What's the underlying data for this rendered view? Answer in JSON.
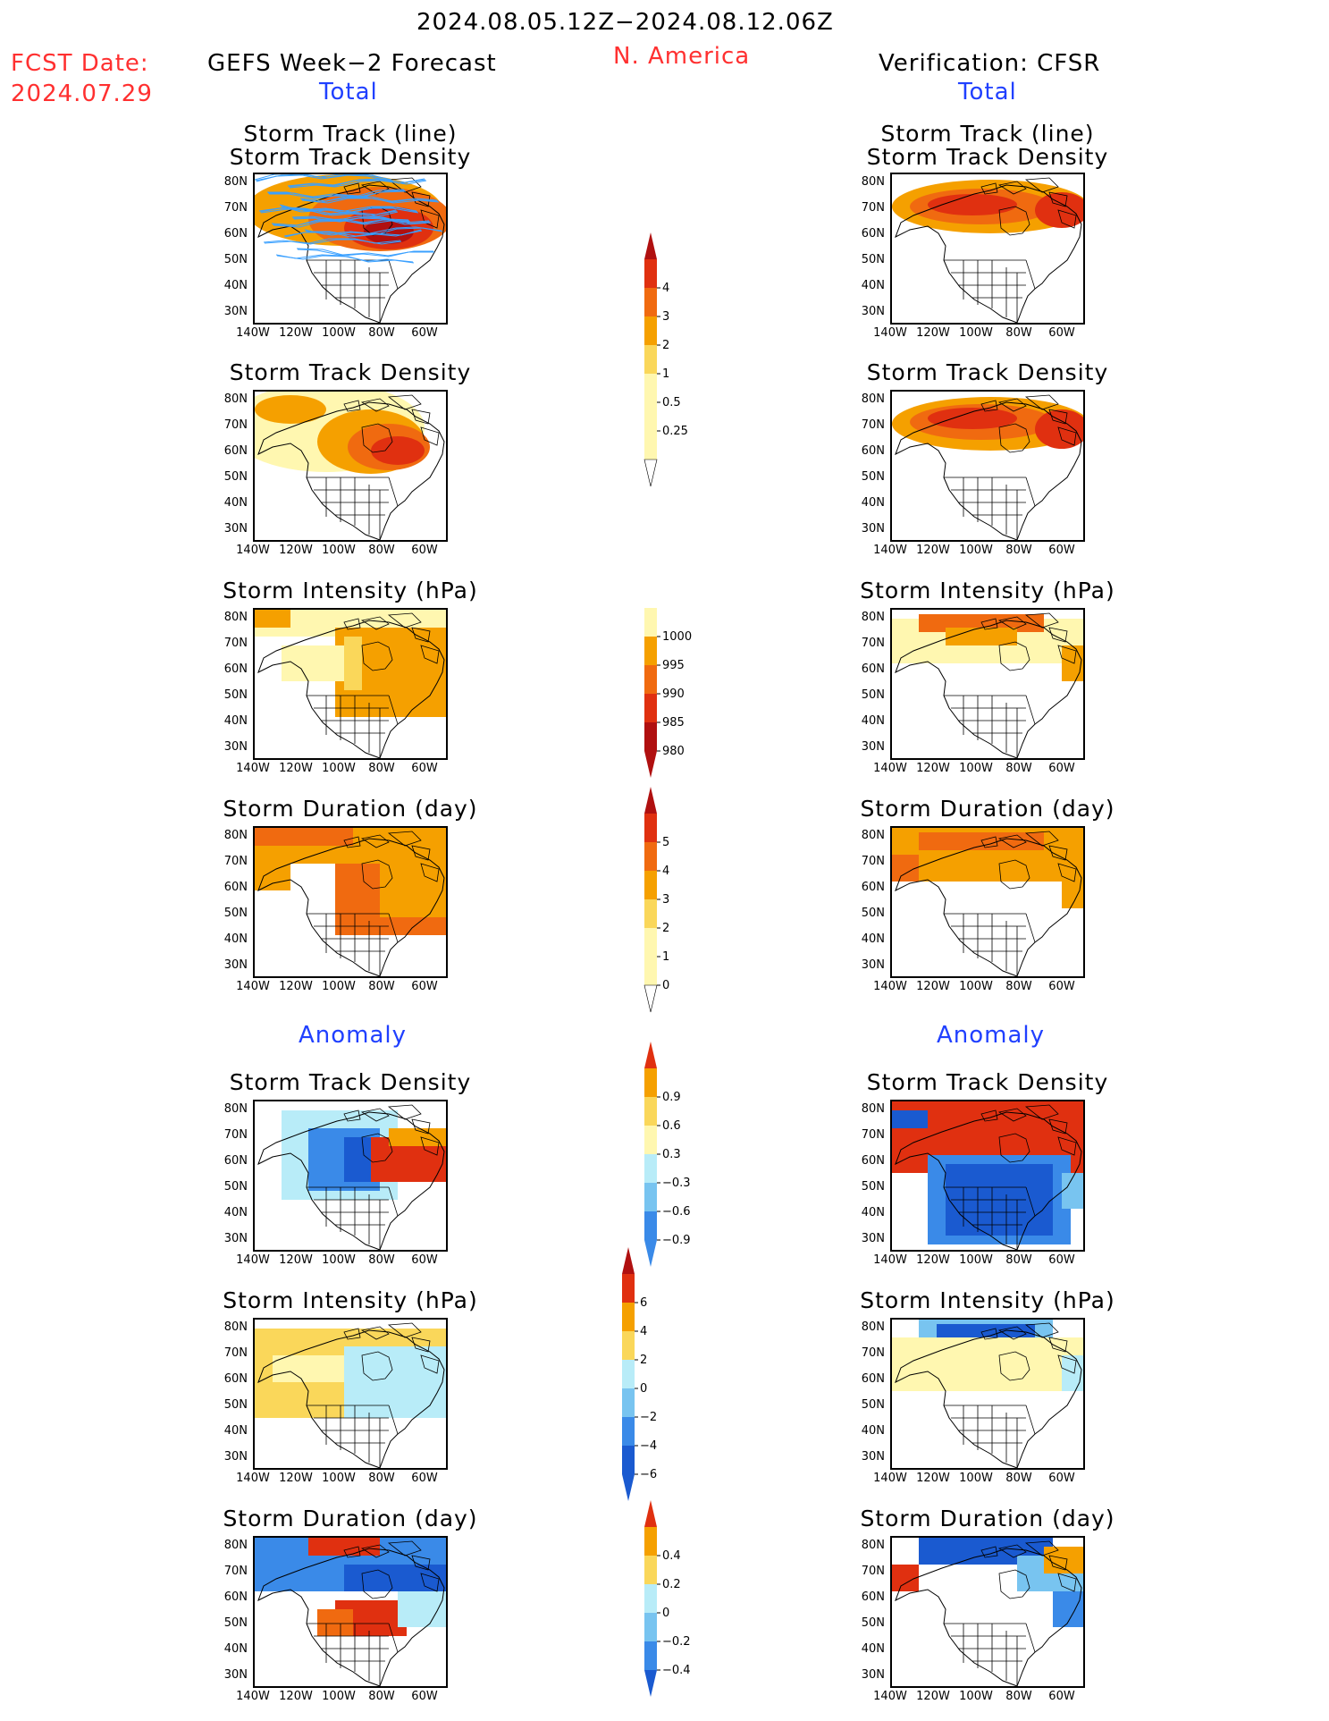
{
  "header": {
    "date_range": "2024.08.05.12Z−2024.08.12.06Z",
    "region": "N. America",
    "fcst_label": "FCST Date:",
    "fcst_date": "2024.07.29",
    "left_title": "GEFS Week−2 Forecast",
    "right_title": "Verification: CFSR"
  },
  "sections": {
    "total": "Total",
    "anomaly": "Anomaly"
  },
  "panels": {
    "track_line": "Storm Track (line)",
    "track_density_shading": "Storm Track Density (shading)",
    "track_density": "Storm Track Density",
    "intensity": "Storm Intensity (hPa)",
    "duration": "Storm Duration (day)"
  },
  "axes": {
    "lat": [
      "80N",
      "70N",
      "60N",
      "50N",
      "40N",
      "30N"
    ],
    "lon": [
      "140W",
      "120W",
      "100W",
      "80W",
      "60W"
    ]
  },
  "colorbars": {
    "density_total": [
      "4",
      "3",
      "2",
      "1",
      "0.5",
      "0.25"
    ],
    "intensity_total": [
      "1000",
      "995",
      "990",
      "985",
      "980"
    ],
    "duration_total": [
      "5",
      "4",
      "3",
      "2",
      "1",
      "0"
    ],
    "density_anom": [
      "0.9",
      "0.6",
      "0.3",
      "−0.3",
      "−0.6",
      "−0.9"
    ],
    "intensity_anom": [
      "6",
      "4",
      "2",
      "0",
      "−2",
      "−4",
      "−6"
    ],
    "duration_anom": [
      "0.4",
      "0.2",
      "0",
      "−0.2",
      "−0.4"
    ]
  },
  "colors": {
    "lightyellow": "#fff7b0",
    "yellow": "#fad75a",
    "orange": "#f5a000",
    "darkorange": "#f06a10",
    "red": "#e03010",
    "darkred": "#b01010",
    "lightblue": "#b8ecf8",
    "skyblue": "#78c4f0",
    "blue": "#3a8ae8",
    "darkblue": "#1a5ad0",
    "track": "#3aa0ff",
    "text_red": "#ff3030",
    "text_blue": "#2040ff"
  }
}
